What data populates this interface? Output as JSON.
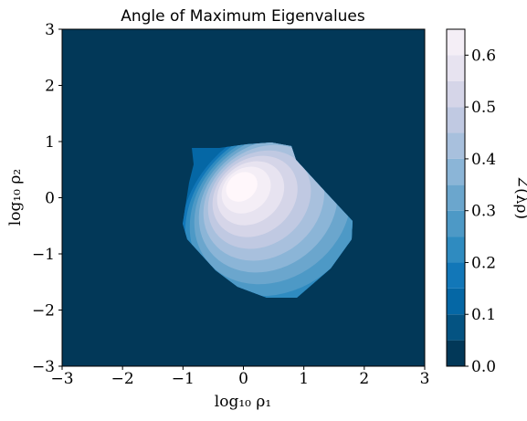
{
  "chart_data": {
    "type": "heatmap",
    "subtype": "filled-contour",
    "title": "Angle of Maximum Eigenvalues",
    "xlabel": "log₁₀ ρ₁",
    "ylabel": "log₁₀ ρ₂",
    "xlim": [
      -3,
      3
    ],
    "ylim": [
      -3,
      3
    ],
    "xticks": [
      "−3",
      "−2",
      "−1",
      "0",
      "1",
      "2",
      "3"
    ],
    "yticks": [
      "−3",
      "−2",
      "−1",
      "0",
      "1",
      "2",
      "3"
    ],
    "colorbar": {
      "label": "∠(λρ)",
      "range": [
        0.0,
        0.65
      ],
      "ticks": [
        "0.0",
        "0.1",
        "0.2",
        "0.3",
        "0.4",
        "0.5",
        "0.6"
      ],
      "levels": [
        0.0,
        0.05,
        0.1,
        0.15,
        0.2,
        0.25,
        0.3,
        0.35,
        0.4,
        0.45,
        0.5,
        0.55,
        0.6,
        0.65
      ],
      "colormap": "PuBu_r",
      "colors": [
        "#023858",
        "#045382",
        "#0567a5",
        "#1277b8",
        "#2f8bc0",
        "#4d99c6",
        "#6ba6cd",
        "#8bb5d7",
        "#a8c0dd",
        "#c0c9e2",
        "#d5d5e8",
        "#e7e3f0",
        "#f4eef6",
        "#fff7fb"
      ]
    },
    "peak": {
      "x": -0.1,
      "y": 0.25,
      "value": 0.65
    },
    "region_extent": {
      "x": [
        -1.0,
        1.8
      ],
      "y": [
        -1.75,
        0.85
      ]
    },
    "background_value": 0.0,
    "grid": false
  }
}
